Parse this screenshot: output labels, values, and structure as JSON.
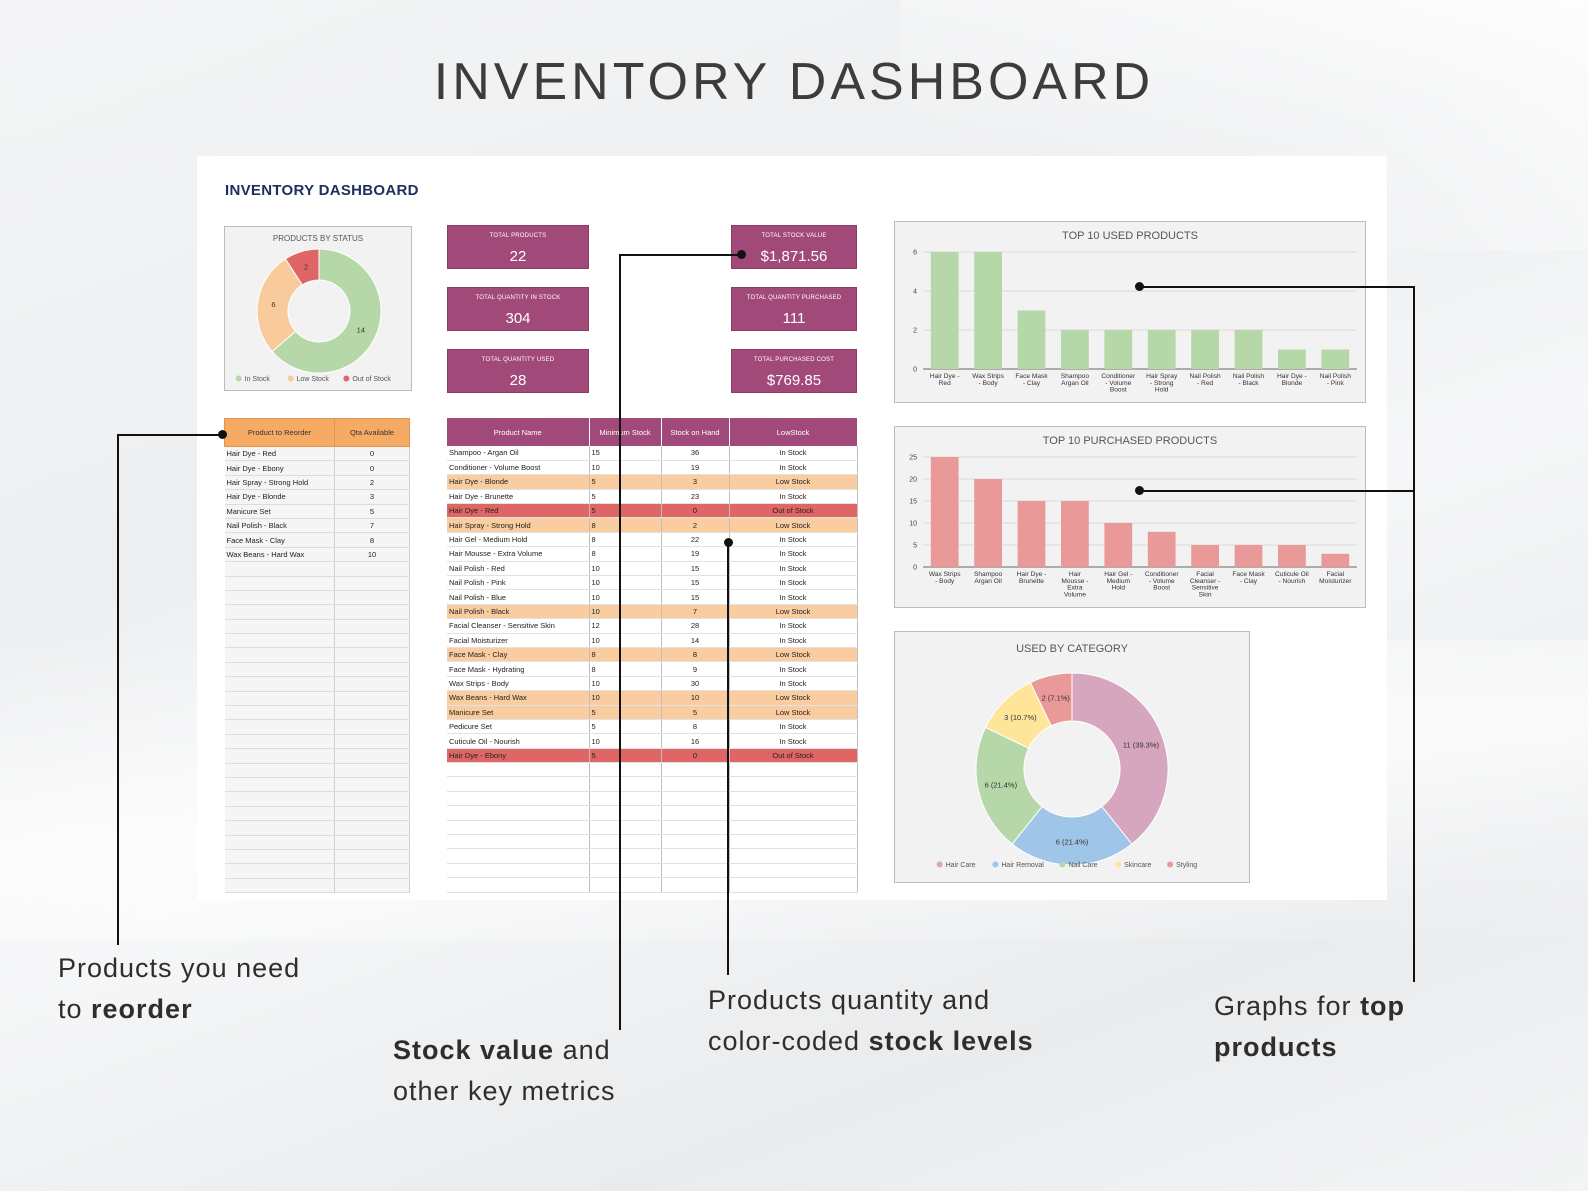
{
  "page_title": "INVENTORY DASHBOARD",
  "sheet_title": "INVENTORY DASHBOARD",
  "colors": {
    "kpi_bg": "#a14a7a",
    "in_stock": "#b6d7a8",
    "low_stock": "#f9cb9c",
    "out_of_stock": "#e06666",
    "used_bar": "#b6d7a8",
    "purchased_bar": "#ea9999",
    "reorder_header": "#f5ab63"
  },
  "kpis": [
    {
      "label": "TOTAL PRODUCTS",
      "value": "22"
    },
    {
      "label": "TOTAL QUANTITY IN STOCK",
      "value": "304"
    },
    {
      "label": "TOTAL QUANTITY USED",
      "value": "28"
    },
    {
      "label": "TOTAL STOCK VALUE",
      "value": "$1,871.56"
    },
    {
      "label": "TOTAL QUANTITY PURCHASED",
      "value": "111"
    },
    {
      "label": "TOTAL PURCHASED COST",
      "value": "$769.85"
    }
  ],
  "reorder_table": {
    "headers": [
      "Product to Reorder",
      "Qta Available"
    ],
    "rows": [
      [
        "Hair Dye  -  Red",
        "0"
      ],
      [
        "Hair Dye  -  Ebony",
        "0"
      ],
      [
        "Hair Spray  -  Strong Hold",
        "2"
      ],
      [
        "Hair Dye  -  Blonde",
        "3"
      ],
      [
        "Manicure Set",
        "5"
      ],
      [
        "Nail Polish  -  Black",
        "7"
      ],
      [
        "Face Mask  -  Clay",
        "8"
      ],
      [
        "Wax Beans  -  Hard Wax",
        "10"
      ]
    ]
  },
  "product_table": {
    "headers": [
      "Product Name",
      "Minimum Stock",
      "Stock on Hand",
      "LowStock"
    ],
    "rows": [
      {
        "name": "Shampoo  -  Argan Oil",
        "min": "15",
        "hand": "36",
        "status": "In Stock"
      },
      {
        "name": "Conditioner  -  Volume Boost",
        "min": "10",
        "hand": "19",
        "status": "In Stock"
      },
      {
        "name": "Hair Dye  -  Blonde",
        "min": "5",
        "hand": "3",
        "status": "Low Stock"
      },
      {
        "name": "Hair Dye  -  Brunette",
        "min": "5",
        "hand": "23",
        "status": "In Stock"
      },
      {
        "name": "Hair Dye  -  Red",
        "min": "5",
        "hand": "0",
        "status": "Out of Stock"
      },
      {
        "name": "Hair Spray  -  Strong Hold",
        "min": "8",
        "hand": "2",
        "status": "Low Stock"
      },
      {
        "name": "Hair Gel  -  Medium Hold",
        "min": "8",
        "hand": "22",
        "status": "In Stock"
      },
      {
        "name": "Hair Mousse  -  Extra Volume",
        "min": "8",
        "hand": "19",
        "status": "In Stock"
      },
      {
        "name": "Nail Polish  -  Red",
        "min": "10",
        "hand": "15",
        "status": "In Stock"
      },
      {
        "name": "Nail Polish  -  Pink",
        "min": "10",
        "hand": "15",
        "status": "In Stock"
      },
      {
        "name": "Nail Polish  -  Blue",
        "min": "10",
        "hand": "15",
        "status": "In Stock"
      },
      {
        "name": "Nail Polish  -  Black",
        "min": "10",
        "hand": "7",
        "status": "Low Stock"
      },
      {
        "name": "Facial Cleanser  -  Sensitive Skin",
        "min": "12",
        "hand": "28",
        "status": "In Stock"
      },
      {
        "name": "Facial Moisturizer",
        "min": "10",
        "hand": "14",
        "status": "In Stock"
      },
      {
        "name": "Face Mask  -  Clay",
        "min": "8",
        "hand": "8",
        "status": "Low Stock"
      },
      {
        "name": "Face Mask  -  Hydrating",
        "min": "8",
        "hand": "9",
        "status": "In Stock"
      },
      {
        "name": "Wax Strips  -  Body",
        "min": "10",
        "hand": "30",
        "status": "In Stock"
      },
      {
        "name": "Wax Beans  -  Hard Wax",
        "min": "10",
        "hand": "10",
        "status": "Low Stock"
      },
      {
        "name": "Manicure Set",
        "min": "5",
        "hand": "5",
        "status": "Low Stock"
      },
      {
        "name": "Pedicure Set",
        "min": "5",
        "hand": "8",
        "status": "In Stock"
      },
      {
        "name": "Cuticule Oil  -  Nourish",
        "min": "10",
        "hand": "16",
        "status": "In Stock"
      },
      {
        "name": "Hair Dye  -  Ebony",
        "min": "5",
        "hand": "0",
        "status": "Out of Stock"
      }
    ]
  },
  "chart_data": [
    {
      "type": "pie",
      "title": "PRODUCTS BY STATUS",
      "labels": [
        "In Stock",
        "Low Stock",
        "Out of Stock"
      ],
      "values": [
        14,
        6,
        2
      ],
      "data_labels": [
        "14",
        "6",
        "2"
      ],
      "colors": [
        "#b6d7a8",
        "#f9cb9c",
        "#e06666"
      ],
      "donut": true,
      "legend": "bottom"
    },
    {
      "type": "bar",
      "title": "TOP 10 USED PRODUCTS",
      "categories": [
        [
          "Hair Dye  -",
          "Red"
        ],
        [
          "Wax Strips",
          "- Body"
        ],
        [
          "Face Mask",
          "- Clay"
        ],
        [
          "Shampoo",
          "Argan Oil"
        ],
        [
          "Conditioner",
          "- Volume",
          "Boost"
        ],
        [
          "Hair Spray",
          "- Strong",
          "Hold"
        ],
        [
          "Nail Polish",
          "- Red"
        ],
        [
          "Nail Polish",
          "- Black"
        ],
        [
          "Hair Dye -",
          "Blonde"
        ],
        [
          "Nail Polish",
          "- Pink"
        ]
      ],
      "values": [
        6,
        6,
        3,
        2,
        2,
        2,
        2,
        2,
        1,
        1
      ],
      "yticks": [
        "0",
        "2",
        "4",
        "6"
      ],
      "ylim": [
        0,
        6
      ],
      "color": "#b6d7a8",
      "grid": true
    },
    {
      "type": "bar",
      "title": "TOP 10 PURCHASED PRODUCTS",
      "categories": [
        [
          "Wax Strips",
          "- Body"
        ],
        [
          "Shampoo",
          "Argan Oil"
        ],
        [
          "Hair Dye -",
          "Brunette"
        ],
        [
          "Hair",
          "Mousse -",
          "Extra",
          "Volume"
        ],
        [
          "Hair Gel -",
          "Medium",
          "Hold"
        ],
        [
          "Conditioner",
          "- Volume",
          "Boost"
        ],
        [
          "Facial",
          "Cleanser -",
          "Sensitive",
          "Skin"
        ],
        [
          "Face Mask",
          "- Clay"
        ],
        [
          "Cuticule Oil",
          "- Nourish"
        ],
        [
          "Facial",
          "Moisturizer"
        ]
      ],
      "values": [
        25,
        20,
        15,
        15,
        10,
        8,
        5,
        5,
        5,
        3
      ],
      "yticks": [
        "0",
        "5",
        "10",
        "15",
        "20",
        "25"
      ],
      "ylim": [
        0,
        25
      ],
      "color": "#ea9999",
      "grid": true
    },
    {
      "type": "pie",
      "title": "USED BY CATEGORY",
      "labels": [
        "Hair Care",
        "Hair Removal",
        "Nail Care",
        "Skincare",
        "Styling"
      ],
      "values": [
        11,
        6,
        6,
        3,
        2
      ],
      "data_labels": [
        "11 (39.3%)",
        "6 (21.4%)",
        "6 (21.4%)",
        "3 (10.7%)",
        "2 (7.1%)"
      ],
      "colors": [
        "#d5a6bd",
        "#9fc5e8",
        "#b6d7a8",
        "#ffe599",
        "#ea9999"
      ],
      "donut": true,
      "legend": "bottom"
    }
  ],
  "callouts": {
    "reorder": {
      "pre": "Products you need",
      "pre2": "to ",
      "bold": "reorder"
    },
    "stock_value": {
      "bold": "Stock value",
      "post": " and",
      "line2": "other key metrics"
    },
    "levels": {
      "line1": "Products quantity and",
      "pre2": "color-coded ",
      "bold": "stock levels"
    },
    "graphs": {
      "pre": "Graphs for ",
      "bold": "top",
      "bold2": "products"
    }
  }
}
